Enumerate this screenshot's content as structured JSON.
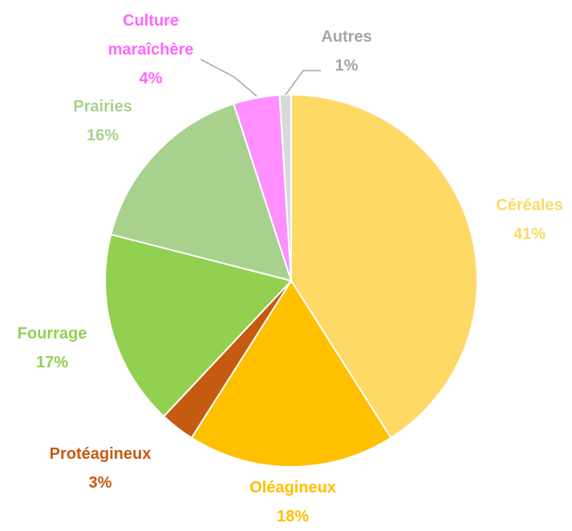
{
  "chart_data": {
    "type": "pie",
    "categories": [
      "Céréales",
      "Oléagineux",
      "Protéagineux",
      "Fourrage",
      "Prairies",
      "Culture maraîchère",
      "Autres"
    ],
    "values": [
      41,
      18,
      3,
      17,
      16,
      4,
      1
    ],
    "value_labels": [
      "41%",
      "18%",
      "3%",
      "17%",
      "16%",
      "4%",
      "1%"
    ],
    "colors": [
      "#FFD966",
      "#FFC000",
      "#C55A11",
      "#92D050",
      "#A9D18E",
      "#FF8FFF",
      "#D9D9D9"
    ],
    "label_colors": [
      "#FFD966",
      "#FFC000",
      "#C55A11",
      "#92D050",
      "#A9D18E",
      "#FF66FF",
      "#A6A6A6"
    ]
  }
}
